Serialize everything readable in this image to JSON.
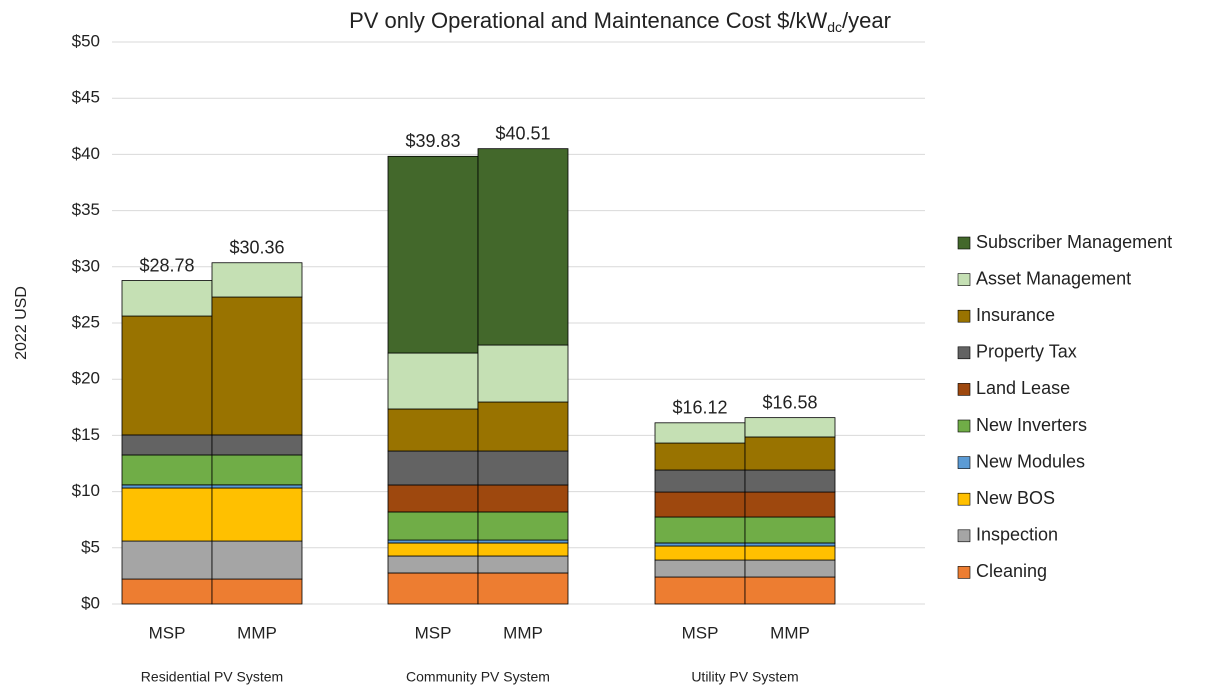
{
  "chart_data": {
    "type": "stacked-bar",
    "title": "PV only Operational and Maintenance Cost $/kW",
    "title_subscript": "dc",
    "title_suffix": "/year",
    "y_label": "2022 USD",
    "categories": [
      "MSP",
      "MMP",
      "MSP",
      "MMP",
      "MSP",
      "MMP"
    ],
    "groups": [
      "Residential PV System",
      "Community PV System",
      "Utility PV System"
    ],
    "series": [
      {
        "name": "Cleaning",
        "color": "#ed7d31",
        "values": [
          2.22,
          2.22,
          2.76,
          2.76,
          2.4,
          2.4
        ]
      },
      {
        "name": "Inspection",
        "color": "#a5a5a5",
        "values": [
          3.38,
          3.38,
          1.51,
          1.51,
          1.51,
          1.51
        ]
      },
      {
        "name": "New BOS",
        "color": "#ffc000",
        "values": [
          4.72,
          4.72,
          1.16,
          1.16,
          1.25,
          1.25
        ]
      },
      {
        "name": "New Modules",
        "color": "#5b9bd5",
        "values": [
          0.28,
          0.28,
          0.26,
          0.26,
          0.27,
          0.27
        ]
      },
      {
        "name": "New Inverters",
        "color": "#70ad47",
        "values": [
          2.66,
          2.66,
          2.5,
          2.5,
          2.31,
          2.31
        ]
      },
      {
        "name": "Land Lease",
        "color": "#9e480e",
        "values": [
          0,
          0,
          2.4,
          2.4,
          2.22,
          2.22
        ]
      },
      {
        "name": "Property Tax",
        "color": "#636363",
        "values": [
          1.78,
          1.78,
          3.02,
          3.02,
          1.96,
          1.96
        ]
      },
      {
        "name": "Insurance",
        "color": "#997300",
        "values": [
          10.58,
          12.27,
          3.74,
          4.36,
          2.4,
          2.94
        ]
      },
      {
        "name": "Asset Management",
        "color": "#c5e0b4",
        "values": [
          3.16,
          3.05,
          4.98,
          5.07,
          1.8,
          1.72
        ]
      },
      {
        "name": "Subscriber Management",
        "color": "#43682b",
        "values": [
          0,
          0,
          17.5,
          17.47,
          0,
          0
        ]
      }
    ],
    "totals": [
      28.78,
      30.36,
      39.83,
      40.51,
      16.12,
      16.58
    ],
    "total_labels": [
      "$28.78",
      "$30.36",
      "$39.83",
      "$40.51",
      "$16.12",
      "$16.58"
    ],
    "ylim": [
      0,
      50
    ],
    "yticks": [
      {
        "value": 0,
        "label": "$0"
      },
      {
        "value": 5,
        "label": "$5"
      },
      {
        "value": 10,
        "label": "$10"
      },
      {
        "value": 15,
        "label": "$15"
      },
      {
        "value": 20,
        "label": "$20"
      },
      {
        "value": 25,
        "label": "$25"
      },
      {
        "value": 30,
        "label": "$30"
      },
      {
        "value": 35,
        "label": "$35"
      },
      {
        "value": 40,
        "label": "$40"
      },
      {
        "value": 45,
        "label": "$45"
      },
      {
        "value": 50,
        "label": "$50"
      }
    ],
    "grid": true,
    "legend": "right"
  }
}
